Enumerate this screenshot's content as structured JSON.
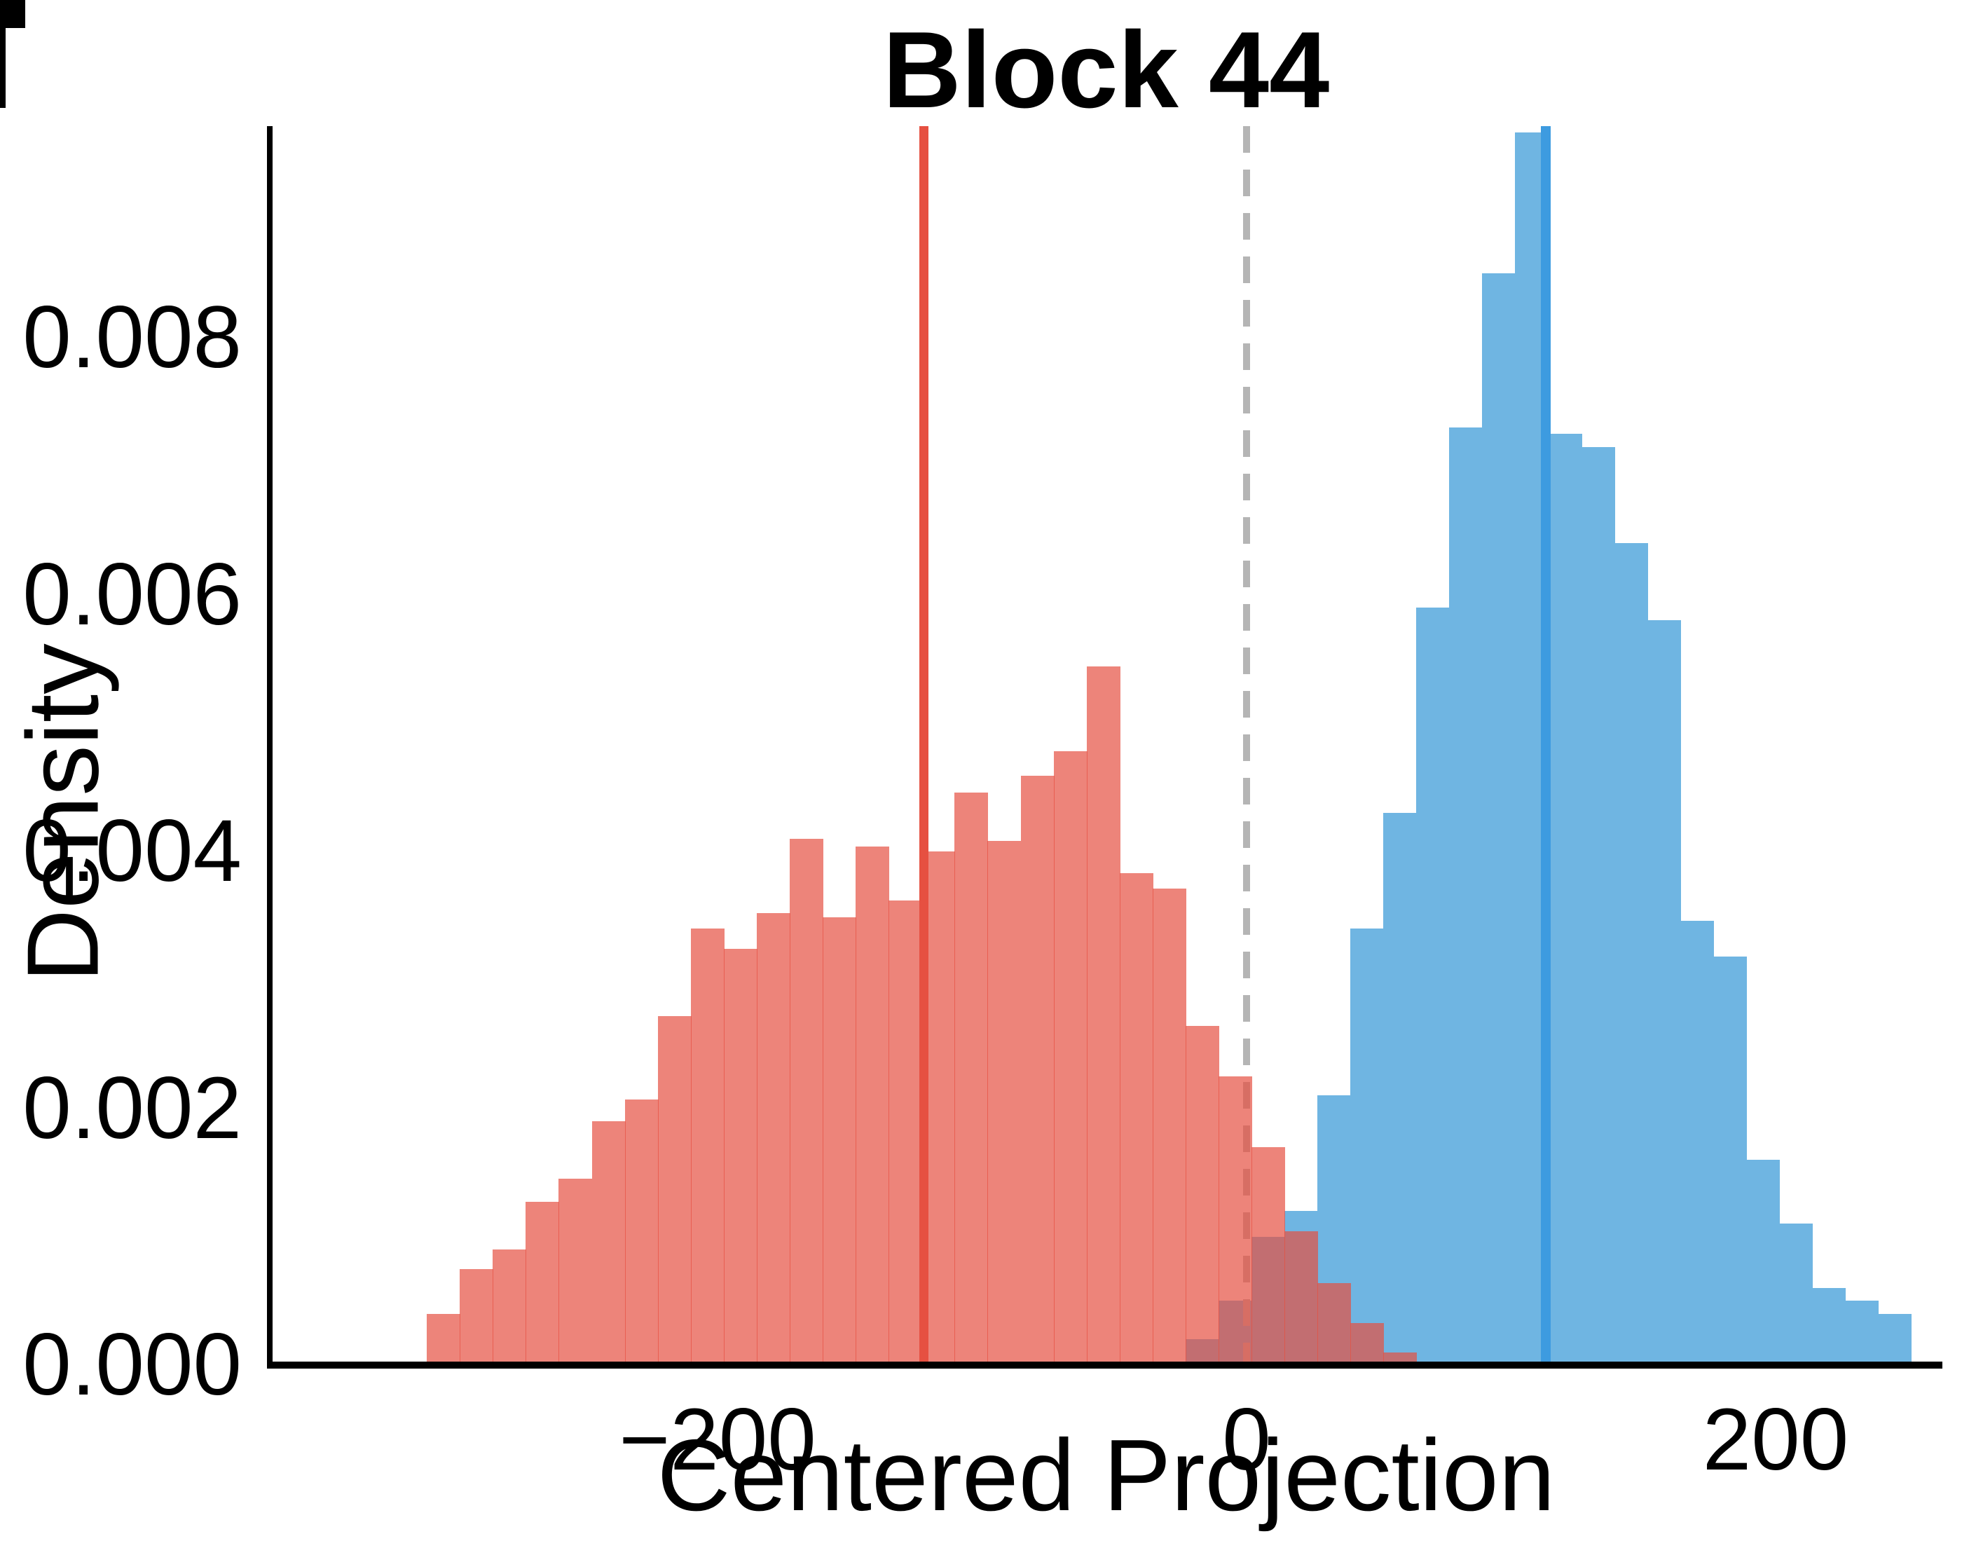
{
  "title": "Block 44",
  "axes": {
    "x_label": "Centered Projection",
    "y_label": "Density",
    "x_ticks": [
      {
        "label": "−200",
        "value": -200
      },
      {
        "label": "0",
        "value": 0
      },
      {
        "label": "200",
        "value": 200
      }
    ],
    "y_ticks": [
      {
        "label": "0.008",
        "value": 0.008
      },
      {
        "label": "0.006",
        "value": 0.006
      },
      {
        "label": "0.004",
        "value": 0.004
      },
      {
        "label": "0.002",
        "value": 0.002
      },
      {
        "label": "0.000",
        "value": 0.0
      }
    ]
  },
  "chart_data": {
    "type": "histogram",
    "title": "Block 44",
    "xlabel": "Centered Projection",
    "ylabel": "Density",
    "xlim": [
      -369,
      263
    ],
    "ylim": [
      0,
      0.00965
    ],
    "grid": false,
    "legend": "none",
    "bin_width": 12.47,
    "series": [
      {
        "name": "blue-distribution",
        "fill": "#6fb5e2",
        "start": -23.14,
        "values": [
          0.0002,
          0.0005,
          0.001,
          0.0012,
          0.0021,
          0.0034,
          0.0043,
          0.0059,
          0.0073,
          0.0085,
          0.0096,
          0.00725,
          0.00715,
          0.0064,
          0.0058,
          0.00346,
          0.00318,
          0.0016,
          0.0011,
          0.0006,
          0.0005,
          0.0004
        ]
      },
      {
        "name": "red-distribution",
        "fill": "rgba(230,80,65,0.7)",
        "start": -309.9,
        "values": [
          0.0004,
          0.00075,
          0.0009,
          0.00127,
          0.00145,
          0.0019,
          0.00207,
          0.00272,
          0.0034,
          0.00324,
          0.00352,
          0.0041,
          0.00349,
          0.00404,
          0.00362,
          0.004,
          0.00446,
          0.00408,
          0.00459,
          0.00478,
          0.00544,
          0.00383,
          0.00371,
          0.00264,
          0.00225,
          0.0017,
          0.00104,
          0.00064,
          0.00033,
          0.0001
        ]
      }
    ],
    "vlines": [
      {
        "name": "zero-reference-line",
        "x": 0,
        "color": "#b5b5b5",
        "style": "dashed",
        "stroke": 10
      },
      {
        "name": "red-mean-line",
        "x": -122,
        "color": "#e65041",
        "style": "solid",
        "stroke": 13
      },
      {
        "name": "blue-mean-line",
        "x": 113,
        "color": "#3d9be0",
        "style": "solid",
        "stroke": 14
      }
    ]
  }
}
